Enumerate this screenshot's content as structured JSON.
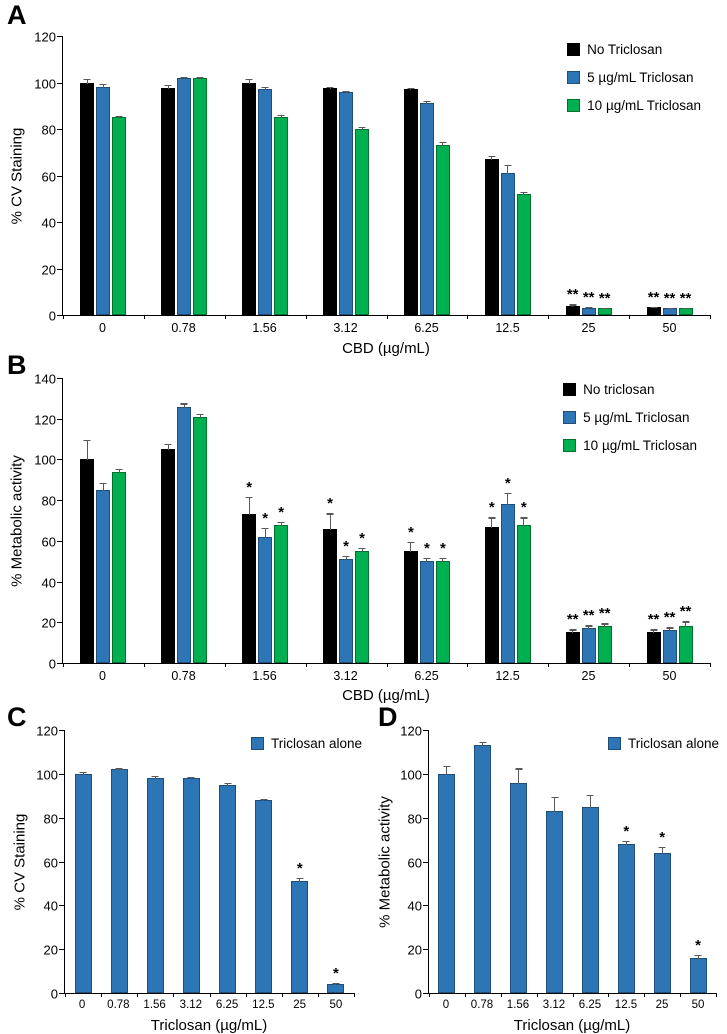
{
  "chart_data": [
    {
      "panel": "A",
      "type": "bar",
      "ylabel": "% CV Staining",
      "xlabel": "CBD (µg/mL)",
      "ylim": [
        0,
        120
      ],
      "ytick_step": 20,
      "grid": false,
      "legend_position": "top-right",
      "categories": [
        "0",
        "0.78",
        "1.56",
        "3.12",
        "6.25",
        "12.5",
        "25",
        "50"
      ],
      "series": [
        {
          "name": "No Triclosan",
          "color": "#000000",
          "border": "#000000",
          "values": [
            100,
            97.5,
            100,
            97.5,
            97,
            67,
            4,
            3.5
          ],
          "errors": [
            2,
            2,
            2,
            1,
            1,
            2,
            1,
            0.5
          ],
          "annotations": [
            "",
            "",
            "",
            "",
            "",
            "",
            "**",
            "**"
          ]
        },
        {
          "name": "5 µg/mL Triclosan",
          "color": "#2E75B6",
          "border": "#1F4E79",
          "values": [
            98,
            102,
            97,
            96,
            91,
            61,
            3,
            3
          ],
          "errors": [
            2,
            1,
            1.5,
            1,
            1.5,
            4,
            1,
            0.5
          ],
          "annotations": [
            "",
            "",
            "",
            "",
            "",
            "",
            "**",
            "**"
          ]
        },
        {
          "name": "10 µg/mL Triclosan",
          "color": "#00B050",
          "border": "#00702F",
          "values": [
            85,
            102,
            85,
            80,
            73,
            52,
            3,
            3
          ],
          "errors": [
            1,
            1,
            1.5,
            1.5,
            2,
            1.5,
            0.5,
            0.5
          ],
          "annotations": [
            "",
            "",
            "",
            "",
            "",
            "",
            "**",
            "**"
          ]
        }
      ]
    },
    {
      "panel": "B",
      "type": "bar",
      "ylabel": "% Metabolic activity",
      "xlabel": "CBD (µg/mL)",
      "ylim": [
        0,
        140
      ],
      "ytick_step": 20,
      "grid": false,
      "legend_position": "top-right",
      "categories": [
        "0",
        "0.78",
        "1.56",
        "3.12",
        "6.25",
        "12.5",
        "25",
        "50"
      ],
      "series": [
        {
          "name": "No triclosan",
          "color": "#000000",
          "border": "#000000",
          "values": [
            100,
            105,
            73,
            66,
            55,
            67,
            15,
            15
          ],
          "errors": [
            10,
            3,
            9,
            8,
            5,
            5,
            2,
            2
          ],
          "annotations": [
            "",
            "",
            "*",
            "*",
            "*",
            "*",
            "**",
            "**"
          ]
        },
        {
          "name": "5 µg/mL Triclosan",
          "color": "#2E75B6",
          "border": "#1F4E79",
          "values": [
            85,
            126,
            62,
            51,
            50,
            78,
            17,
            16
          ],
          "errors": [
            4,
            2,
            5,
            2,
            2,
            6,
            2,
            2
          ],
          "annotations": [
            "",
            "",
            "*",
            "*",
            "*",
            "*",
            "**",
            "**"
          ]
        },
        {
          "name": "10 µg/mL Triclosan",
          "color": "#00B050",
          "border": "#00702F",
          "values": [
            94,
            121,
            68,
            55,
            50,
            68,
            18,
            18
          ],
          "errors": [
            2,
            2,
            2,
            2,
            2,
            4,
            2,
            3
          ],
          "annotations": [
            "",
            "",
            "*",
            "*",
            "*",
            "*",
            "**",
            "**"
          ]
        }
      ]
    },
    {
      "panel": "C",
      "type": "bar",
      "ylabel": "% CV Staining",
      "xlabel": "Triclosan (µg/mL)",
      "ylim": [
        0,
        120
      ],
      "ytick_step": 20,
      "grid": false,
      "legend_position": "top-right",
      "categories": [
        "0",
        "0.78",
        "1.56",
        "3.12",
        "6.25",
        "12.5",
        "25",
        "50"
      ],
      "series": [
        {
          "name": "Triclosan alone",
          "color": "#2E75B6",
          "border": "#1F4E79",
          "values": [
            100,
            102,
            98,
            98,
            95,
            88,
            51,
            4
          ],
          "errors": [
            1.5,
            1,
            1.5,
            1,
            1.5,
            1,
            2,
            1
          ],
          "annotations": [
            "",
            "",
            "",
            "",
            "",
            "",
            "*",
            "*"
          ]
        }
      ]
    },
    {
      "panel": "D",
      "type": "bar",
      "ylabel": "% Metabolic activity",
      "xlabel": "Triclosan (µg/mL)",
      "ylim": [
        0,
        120
      ],
      "ytick_step": 20,
      "grid": false,
      "legend_position": "top-right",
      "categories": [
        "0",
        "0.78",
        "1.56",
        "3.12",
        "6.25",
        "12.5",
        "25",
        "50"
      ],
      "series": [
        {
          "name": "Triclosan alone",
          "color": "#2E75B6",
          "border": "#1F4E79",
          "values": [
            100,
            113,
            96,
            83,
            85,
            68,
            64,
            16
          ],
          "errors": [
            4,
            2,
            7,
            7,
            6,
            2,
            3,
            2
          ],
          "annotations": [
            "",
            "",
            "",
            "",
            "",
            "*",
            "*",
            "*"
          ]
        }
      ]
    }
  ]
}
